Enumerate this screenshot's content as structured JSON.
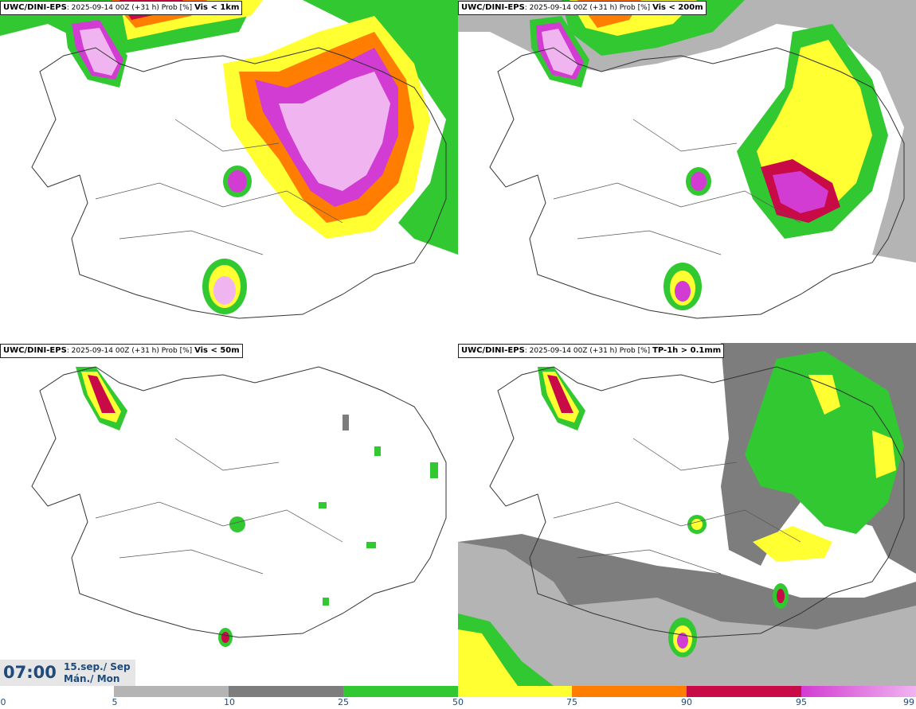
{
  "panels": [
    {
      "source": "UWC/DINI-EPS",
      "run": "2025-09-14 00Z (+31 h) Prob [%]",
      "title": "Vis < 1km"
    },
    {
      "source": "UWC/DINI-EPS",
      "run": "2025-09-14 00Z (+31 h) Prob [%]",
      "title": "Vis < 200m"
    },
    {
      "source": "UWC/DINI-EPS",
      "run": "2025-09-14 00Z (+31 h) Prob [%]",
      "title": "Vis < 50m"
    },
    {
      "source": "UWC/DINI-EPS",
      "run": "2025-09-14 00Z (+31 h) Prob [%]",
      "title": "TP-1h > 0.1mm"
    }
  ],
  "valid": {
    "time": "07:00",
    "date": "15.sep./ Sep",
    "day": "Mán./ Mon"
  },
  "colorbar": {
    "ticks": [
      "0",
      "5",
      "10",
      "25",
      "50",
      "75",
      "90",
      "95",
      "99"
    ],
    "colors": [
      "#ffffff",
      "#b4b4b4",
      "#7d7d7d",
      "#32c832",
      "#ffff32",
      "#ff7d00",
      "#c80a46",
      "#d23cd2",
      "#f0b4f0"
    ]
  }
}
